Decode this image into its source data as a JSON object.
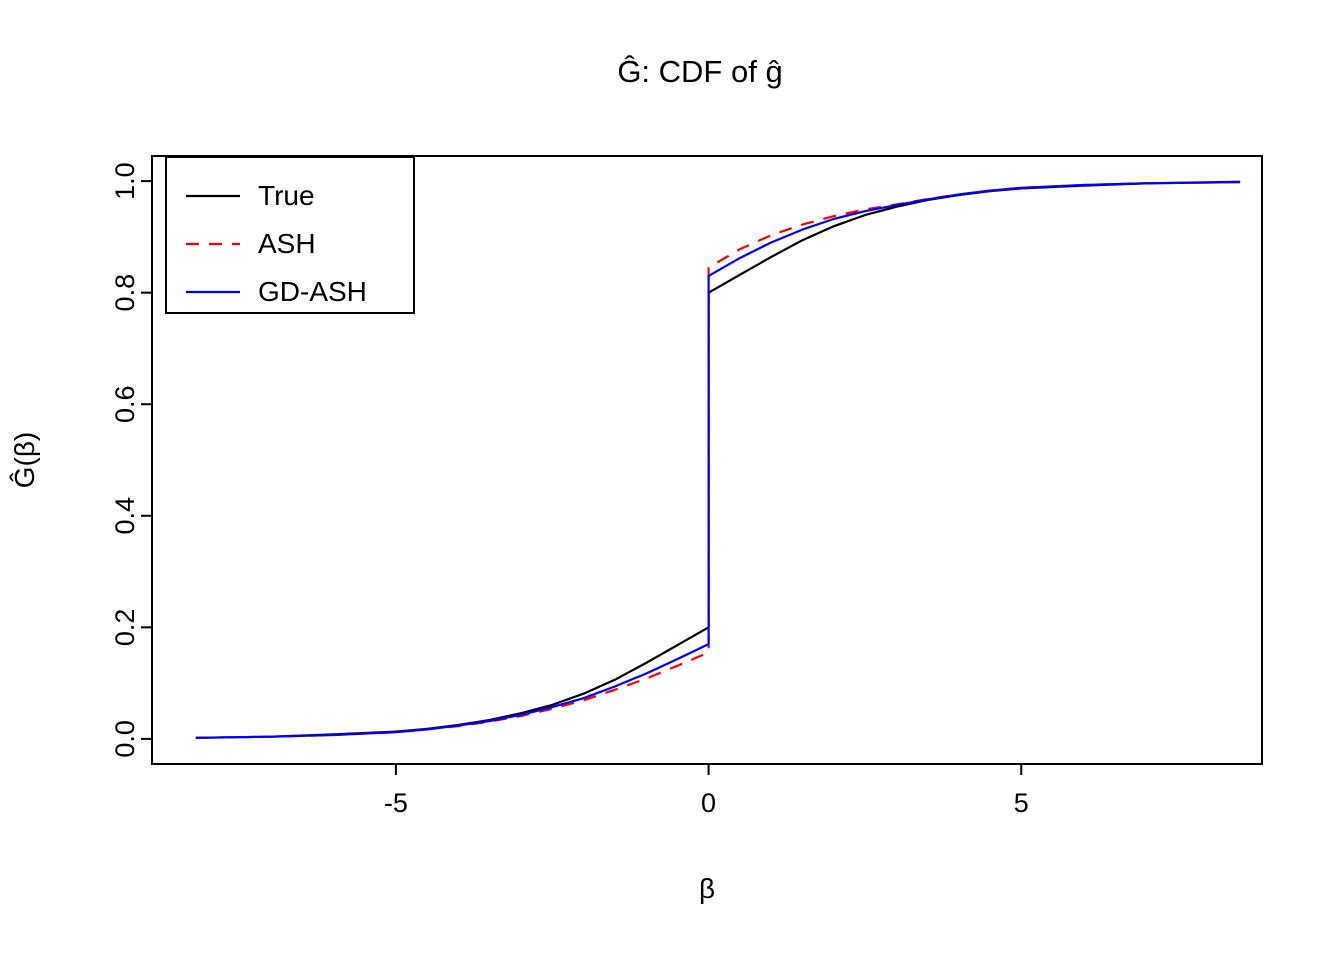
{
  "page": {
    "background": "#ffffff"
  },
  "chart_data": {
    "type": "line",
    "title": "Ĝ: CDF of ĝ",
    "xlabel": "β",
    "ylabel": "Ĝ(β)",
    "xlim": [
      -8.9,
      8.85
    ],
    "ylim": [
      -0.045,
      1.045
    ],
    "grid": false,
    "legend_position": "top-left",
    "x_ticks": {
      "values": [
        -5,
        0,
        5
      ],
      "labels": [
        "-5",
        "0",
        "5"
      ]
    },
    "y_ticks": {
      "values": [
        0.0,
        0.2,
        0.4,
        0.6,
        0.8,
        1.0
      ],
      "labels": [
        "0.0",
        "0.2",
        "0.4",
        "0.6",
        "0.8",
        "1.0"
      ]
    },
    "series": [
      {
        "name": "True",
        "color": "#000000",
        "dash": "solid",
        "points": [
          [
            -8.2,
            0.002
          ],
          [
            -7,
            0.004
          ],
          [
            -6,
            0.008
          ],
          [
            -5,
            0.013
          ],
          [
            -4.5,
            0.018
          ],
          [
            -4,
            0.025
          ],
          [
            -3.5,
            0.034
          ],
          [
            -3,
            0.046
          ],
          [
            -2.5,
            0.061
          ],
          [
            -2,
            0.081
          ],
          [
            -1.5,
            0.106
          ],
          [
            -1,
            0.136
          ],
          [
            -0.5,
            0.168
          ],
          [
            0,
            0.2
          ],
          [
            0,
            0.8
          ],
          [
            0.5,
            0.832
          ],
          [
            1,
            0.864
          ],
          [
            1.5,
            0.894
          ],
          [
            2,
            0.919
          ],
          [
            2.5,
            0.939
          ],
          [
            3,
            0.954
          ],
          [
            3.5,
            0.966
          ],
          [
            4,
            0.975
          ],
          [
            4.5,
            0.982
          ],
          [
            5,
            0.987
          ],
          [
            6,
            0.992
          ],
          [
            7,
            0.996
          ],
          [
            8.5,
            0.998
          ]
        ]
      },
      {
        "name": "ASH",
        "color": "#ff0000",
        "dash": "dashed",
        "points": [
          [
            -8.2,
            0.002
          ],
          [
            -7,
            0.004
          ],
          [
            -6,
            0.007
          ],
          [
            -5,
            0.012
          ],
          [
            -4.5,
            0.017
          ],
          [
            -4,
            0.023
          ],
          [
            -3.5,
            0.031
          ],
          [
            -3,
            0.041
          ],
          [
            -2.5,
            0.054
          ],
          [
            -2,
            0.069
          ],
          [
            -1.5,
            0.088
          ],
          [
            -1,
            0.108
          ],
          [
            -0.5,
            0.131
          ],
          [
            0,
            0.155
          ],
          [
            0,
            0.845
          ],
          [
            0.5,
            0.878
          ],
          [
            1,
            0.903
          ],
          [
            1.5,
            0.922
          ],
          [
            2,
            0.937
          ],
          [
            2.5,
            0.949
          ],
          [
            3,
            0.958
          ],
          [
            3.5,
            0.968
          ],
          [
            4,
            0.976
          ],
          [
            4.5,
            0.983
          ],
          [
            5,
            0.988
          ],
          [
            6,
            0.993
          ],
          [
            7,
            0.996
          ],
          [
            8.5,
            0.998
          ]
        ]
      },
      {
        "name": "GD-ASH",
        "color": "#0000ff",
        "dash": "solid",
        "points": [
          [
            -8.2,
            0.002
          ],
          [
            -7,
            0.004
          ],
          [
            -6,
            0.007
          ],
          [
            -5,
            0.012
          ],
          [
            -4.5,
            0.017
          ],
          [
            -4,
            0.024
          ],
          [
            -3.5,
            0.032
          ],
          [
            -3,
            0.043
          ],
          [
            -2.5,
            0.057
          ],
          [
            -2,
            0.073
          ],
          [
            -1.5,
            0.094
          ],
          [
            -1,
            0.117
          ],
          [
            -0.5,
            0.143
          ],
          [
            0,
            0.17
          ],
          [
            0,
            0.83
          ],
          [
            0.5,
            0.862
          ],
          [
            1,
            0.89
          ],
          [
            1.5,
            0.913
          ],
          [
            2,
            0.932
          ],
          [
            2.5,
            0.946
          ],
          [
            3,
            0.957
          ],
          [
            3.5,
            0.967
          ],
          [
            4,
            0.976
          ],
          [
            4.5,
            0.983
          ],
          [
            5,
            0.988
          ],
          [
            6,
            0.993
          ],
          [
            7,
            0.996
          ],
          [
            8.5,
            0.999
          ]
        ]
      }
    ]
  }
}
